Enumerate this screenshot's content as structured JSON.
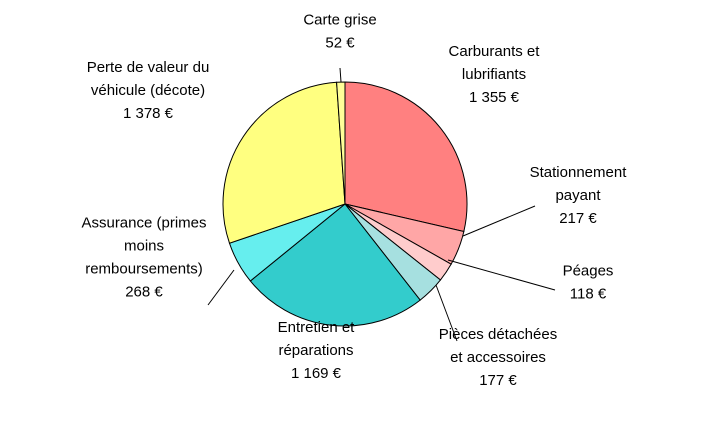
{
  "chart_data": {
    "type": "pie",
    "title": "",
    "unit": "€",
    "slices": [
      {
        "lines": [
          "Carburants et",
          "lubrifiants"
        ],
        "value_label": "1 355 €",
        "value": 1355,
        "color": "#ff8080"
      },
      {
        "lines": [
          "Stationnement",
          "payant"
        ],
        "value_label": "217 €",
        "value": 217,
        "color": "#ffa6a6"
      },
      {
        "lines": [
          "Péages"
        ],
        "value_label": "118 €",
        "value": 118,
        "color": "#ffcccc"
      },
      {
        "lines": [
          "Pièces détachées",
          "et accessoires"
        ],
        "value_label": "177 €",
        "value": 177,
        "color": "#a6e0e0"
      },
      {
        "lines": [
          "Entretien et",
          "réparations"
        ],
        "value_label": "1 169 €",
        "value": 1169,
        "color": "#33cccc"
      },
      {
        "lines": [
          "Assurance (primes",
          "moins",
          "remboursements)"
        ],
        "value_label": "268 €",
        "value": 268,
        "color": "#66eeee"
      },
      {
        "lines": [
          "Perte de valeur du",
          "véhicule (décote)"
        ],
        "value_label": "1 378 €",
        "value": 1378,
        "color": "#ffff80"
      },
      {
        "lines": [
          "Carte grise"
        ],
        "value_label": "52 €",
        "value": 52,
        "color": "#ffff99"
      }
    ]
  }
}
